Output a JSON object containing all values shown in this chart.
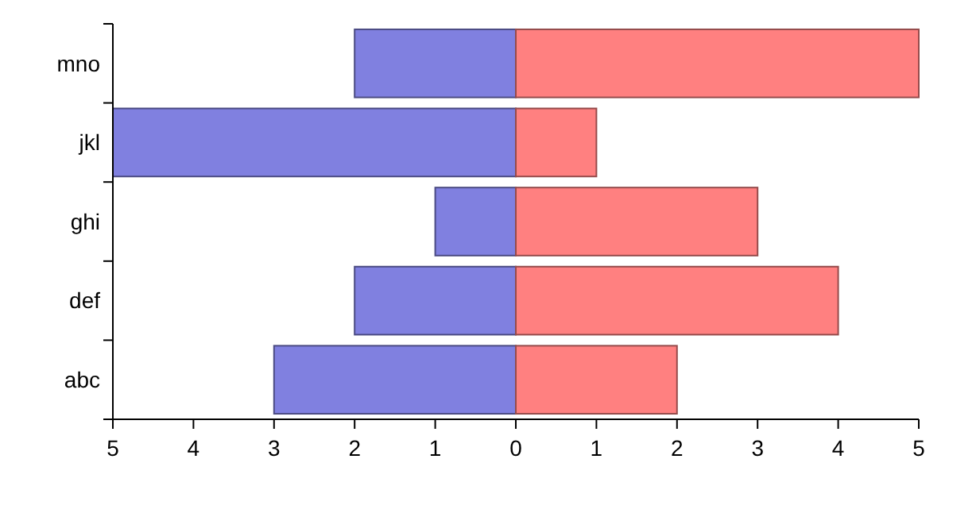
{
  "chart_data": {
    "type": "bar",
    "orientation": "horizontal",
    "stacked": true,
    "categories": [
      "mno",
      "jkl",
      "ghi",
      "def",
      "abc"
    ],
    "series": [
      {
        "color": "#8080e0",
        "values": [
          -2,
          -5,
          -1,
          -2,
          -3
        ]
      },
      {
        "color": "#ff8080",
        "values": [
          5,
          1,
          3,
          4,
          2
        ]
      }
    ],
    "xlim": [
      -5,
      5
    ],
    "xticks": [
      {
        "value": -5,
        "label": "5"
      },
      {
        "value": -4,
        "label": "4"
      },
      {
        "value": -3,
        "label": "3"
      },
      {
        "value": -2,
        "label": "2"
      },
      {
        "value": -1,
        "label": "1"
      },
      0,
      1,
      2,
      3,
      4,
      5
    ],
    "grid": false
  }
}
